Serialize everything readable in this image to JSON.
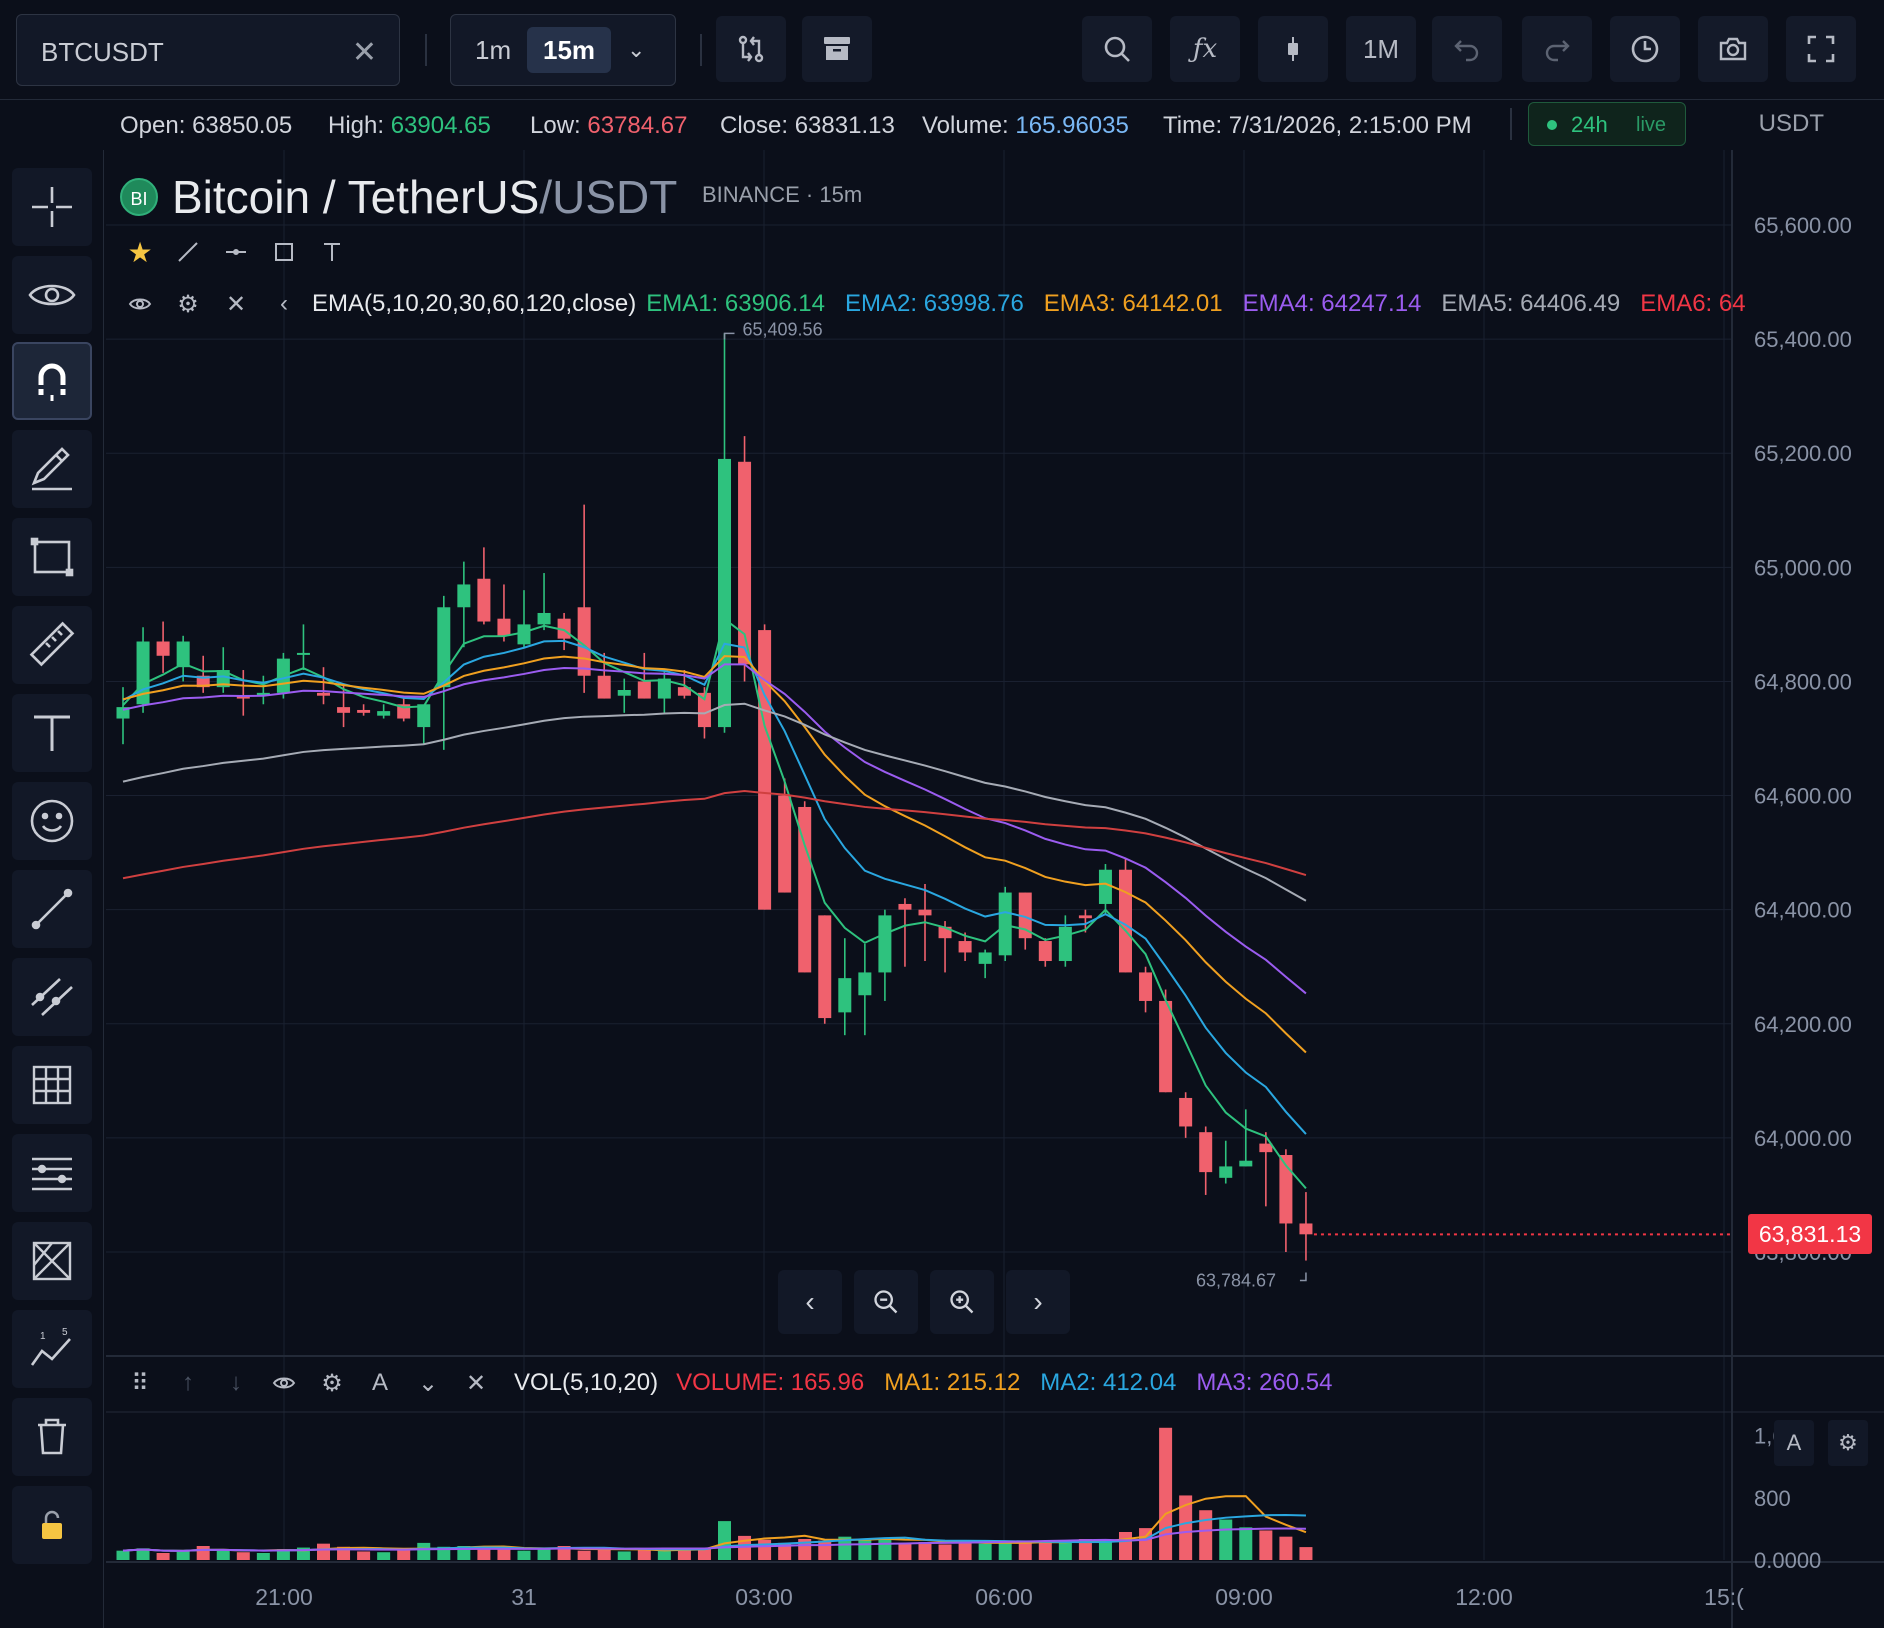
{
  "toolbar": {
    "symbol": "BTCUSDT",
    "clear_icon": "close-icon",
    "timeframes": [
      "1m",
      "15m"
    ],
    "active_timeframe": "15m",
    "range_label": "1M",
    "icons": [
      "compare-icon",
      "archive-icon",
      "search-icon",
      "indicators-icon",
      "candle-type-icon",
      "undo-icon",
      "redo-icon",
      "clock-icon",
      "camera-icon",
      "fullscreen-icon"
    ]
  },
  "info": {
    "open_label": "Open:",
    "open": "63850.05",
    "high_label": "High:",
    "high": "63904.65",
    "low_label": "Low:",
    "low": "63784.67",
    "close_label": "Close:",
    "close": "63831.13",
    "volume_label": "Volume:",
    "volume": "165.96035",
    "time_label": "Time:",
    "time": "7/31/2026, 2:15:00 PM",
    "badge_range": "24h",
    "badge_status": "live",
    "unit": "USDT"
  },
  "chart_header": {
    "logo_text": "BI",
    "base": "Bitcoin / TetherUS",
    "quote": "/USDT",
    "exchange": "BINANCE",
    "dot": "·",
    "interval": "15m",
    "ema_label": "EMA(5,10,20,30,60,120,close)",
    "ema_values": [
      {
        "label": "EMA1:",
        "value": "63906.14",
        "color": "#2ec27e"
      },
      {
        "label": "EMA2:",
        "value": "63998.76",
        "color": "#2aa7e0"
      },
      {
        "label": "EMA3:",
        "value": "64142.01",
        "color": "#f0a020"
      },
      {
        "label": "EMA4:",
        "value": "64247.14",
        "color": "#9b5cf0"
      },
      {
        "label": "EMA5:",
        "value": "64406.49",
        "color": "#a6abb5"
      },
      {
        "label": "EMA6:",
        "value": "64",
        "color": "#f23645"
      }
    ]
  },
  "volume_header": {
    "label": "VOL(5,10,20)",
    "values": [
      {
        "label": "VOLUME:",
        "value": "165.96",
        "color": "#f23645"
      },
      {
        "label": "MA1:",
        "value": "215.12",
        "color": "#f0a020"
      },
      {
        "label": "MA2:",
        "value": "412.04",
        "color": "#2aa7e0"
      },
      {
        "label": "MA3:",
        "value": "260.54",
        "color": "#9b5cf0"
      }
    ],
    "pane_buttons": [
      "A"
    ]
  },
  "price_axis": [
    "65,600.00",
    "65,400.00",
    "65,200.00",
    "65,000.00",
    "64,800.00",
    "64,600.00",
    "64,400.00",
    "64,200.00",
    "64,000.00",
    "63,800.00"
  ],
  "volume_axis": [
    "1,600",
    "800",
    "0.0000"
  ],
  "time_axis": [
    "21:00",
    "31",
    "03:00",
    "06:00",
    "09:00",
    "12:00",
    "15:("
  ],
  "last_price": "63,831.13",
  "high_marker": "65,409.56",
  "low_marker": "63,784.67",
  "colors": {
    "up": "#2ec27e",
    "down": "#f0616d",
    "bg": "#0b0f1a"
  },
  "chart_data": {
    "type": "candlestick",
    "title": "Bitcoin / TetherUS/USDT",
    "interval": "15m",
    "ylim": [
      63700,
      65700
    ],
    "candles": [
      [
        64735,
        64790,
        64690,
        64755
      ],
      [
        64760,
        64895,
        64745,
        64870
      ],
      [
        64870,
        64905,
        64815,
        64845
      ],
      [
        64825,
        64880,
        64800,
        64870
      ],
      [
        64810,
        64845,
        64780,
        64790
      ],
      [
        64790,
        64860,
        64780,
        64820
      ],
      [
        64775,
        64820,
        64740,
        64770
      ],
      [
        64775,
        64810,
        64760,
        64780
      ],
      [
        64780,
        64850,
        64770,
        64840
      ],
      [
        64850,
        64900,
        64820,
        64850
      ],
      [
        64780,
        64825,
        64760,
        64775
      ],
      [
        64755,
        64795,
        64720,
        64745
      ],
      [
        64750,
        64760,
        64740,
        64745
      ],
      [
        64740,
        64760,
        64735,
        64748
      ],
      [
        64760,
        64770,
        64730,
        64735
      ],
      [
        64720,
        64750,
        64690,
        64760
      ],
      [
        64790,
        64950,
        64680,
        64930
      ],
      [
        64930,
        65010,
        64860,
        64970
      ],
      [
        64980,
        65035,
        64900,
        64905
      ],
      [
        64910,
        64970,
        64870,
        64880
      ],
      [
        64865,
        64960,
        64860,
        64900
      ],
      [
        64900,
        64990,
        64890,
        64920
      ],
      [
        64910,
        64920,
        64855,
        64875
      ],
      [
        64930,
        65110,
        64780,
        64810
      ],
      [
        64810,
        64850,
        64770,
        64770
      ],
      [
        64775,
        64805,
        64745,
        64785
      ],
      [
        64800,
        64850,
        64770,
        64770
      ],
      [
        64770,
        64820,
        64745,
        64805
      ],
      [
        64790,
        64820,
        64770,
        64775
      ],
      [
        64780,
        64790,
        64700,
        64720
      ],
      [
        64720,
        65410,
        64710,
        65190
      ],
      [
        65185,
        65230,
        64800,
        64830
      ],
      [
        64890,
        64900,
        64400,
        64400
      ],
      [
        64600,
        64630,
        64430,
        64430
      ],
      [
        64580,
        64590,
        64290,
        64290
      ],
      [
        64390,
        64390,
        64200,
        64210
      ],
      [
        64220,
        64350,
        64180,
        64280
      ],
      [
        64250,
        64340,
        64180,
        64290
      ],
      [
        64290,
        64400,
        64240,
        64390
      ],
      [
        64410,
        64420,
        64300,
        64400
      ],
      [
        64400,
        64445,
        64310,
        64390
      ],
      [
        64370,
        64380,
        64290,
        64350
      ],
      [
        64345,
        64360,
        64310,
        64325
      ],
      [
        64305,
        64330,
        64280,
        64325
      ],
      [
        64320,
        64440,
        64310,
        64430
      ],
      [
        64430,
        64430,
        64330,
        64350
      ],
      [
        64345,
        64350,
        64300,
        64310
      ],
      [
        64310,
        64390,
        64300,
        64370
      ],
      [
        64390,
        64400,
        64360,
        64385
      ],
      [
        64410,
        64480,
        64390,
        64470
      ],
      [
        64470,
        64490,
        64290,
        64290
      ],
      [
        64290,
        64300,
        64220,
        64240
      ],
      [
        64240,
        64260,
        64080,
        64080
      ],
      [
        64070,
        64080,
        64000,
        64020
      ],
      [
        64010,
        64020,
        63900,
        63940
      ],
      [
        63930,
        63995,
        63920,
        63950
      ],
      [
        63950,
        64050,
        63950,
        63960
      ],
      [
        63990,
        64010,
        63880,
        63975
      ],
      [
        63970,
        63980,
        63800,
        63850
      ],
      [
        63850,
        63905,
        63785,
        63831
      ]
    ],
    "volumes": [
      120,
      150,
      90,
      110,
      180,
      130,
      100,
      90,
      140,
      160,
      210,
      170,
      110,
      100,
      130,
      220,
      170,
      180,
      160,
      140,
      120,
      150,
      180,
      120,
      130,
      110,
      140,
      120,
      150,
      160,
      500,
      310,
      260,
      220,
      270,
      250,
      300,
      260,
      280,
      220,
      230,
      200,
      240,
      210,
      230,
      220,
      250,
      230,
      270,
      230,
      360,
      410,
      1700,
      830,
      640,
      520,
      420,
      380,
      300,
      166
    ]
  }
}
